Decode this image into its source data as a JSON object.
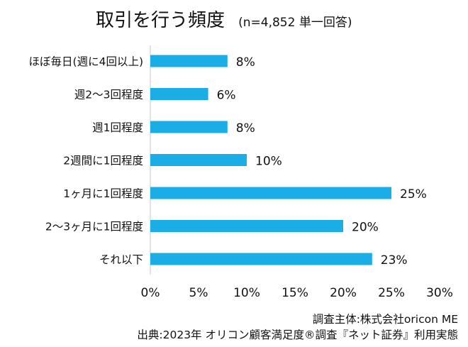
{
  "chart_data": {
    "type": "bar",
    "orientation": "horizontal",
    "title": "取引を行う頻度",
    "subtitle": "(n=4,852 単一回答)",
    "categories": [
      "ほぼ毎日(週に4回以上)",
      "週2〜3回程度",
      "週1回程度",
      "2週間に1回程度",
      "1ヶ月に1回程度",
      "2〜3ヶ月に1回程度",
      "それ以下"
    ],
    "values": [
      8,
      6,
      8,
      10,
      25,
      20,
      23
    ],
    "data_labels": [
      "8%",
      "6%",
      "8%",
      "10%",
      "25%",
      "20%",
      "23%"
    ],
    "xlim": [
      0,
      30
    ],
    "xticks": [
      "0%",
      "5%",
      "10%",
      "15%",
      "20%",
      "25%",
      "30%"
    ],
    "grid": false,
    "bar_color": "#1AADE6"
  },
  "source": {
    "line1": "調査主体:株式会社oricon ME",
    "line2": "出典:2023年 オリコン顧客満足度®調査『ネット証券』利用実態"
  }
}
